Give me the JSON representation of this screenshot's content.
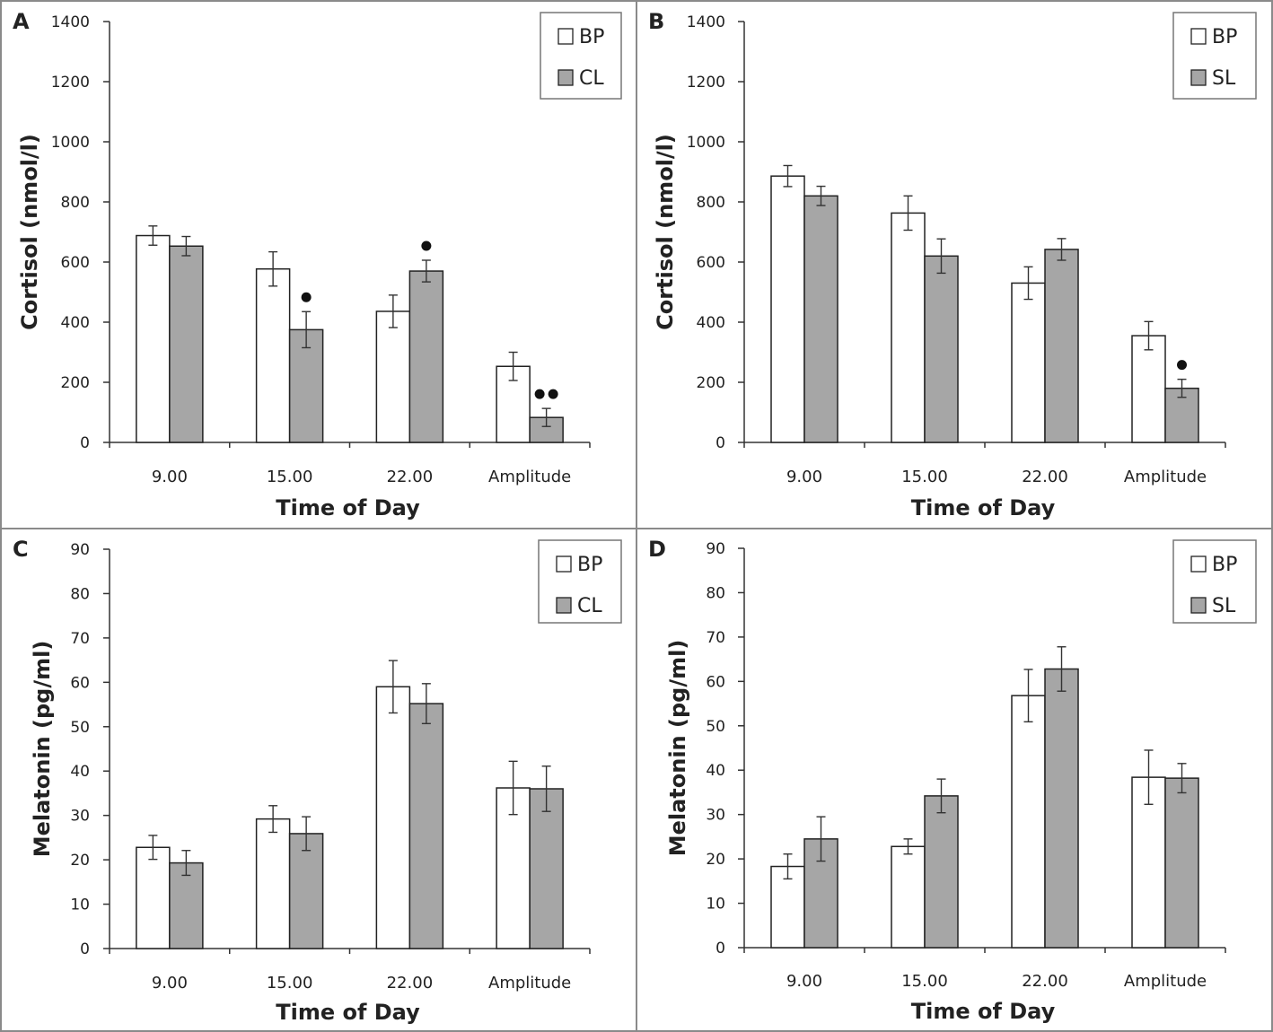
{
  "figure": {
    "panels": [
      {
        "id": "A",
        "letter": "A",
        "ylabel": "Cortisol (nmol/l)",
        "xlabel": "Time of Day",
        "ymax": 1400,
        "ystep": 200,
        "categories": [
          "9.00",
          "15.00",
          "22.00",
          "Amplitude"
        ],
        "series": [
          {
            "name": "BP",
            "color": "#ffffff",
            "values": [
              688,
              577,
              436,
              253
            ],
            "errors": [
              32,
              57,
              54,
              47
            ]
          },
          {
            "name": "CL",
            "color": "#a6a6a6",
            "values": [
              653,
              375,
              570,
              83
            ],
            "errors": [
              32,
              60,
              36,
              30
            ]
          }
        ],
        "markers": [
          {
            "series": 1,
            "category": 1,
            "count": 1
          },
          {
            "series": 1,
            "category": 2,
            "count": 1
          },
          {
            "series": 1,
            "category": 3,
            "count": 2
          }
        ]
      },
      {
        "id": "B",
        "letter": "B",
        "ylabel": "Cortisol (nmol/l)",
        "xlabel": "Time of Day",
        "ymax": 1400,
        "ystep": 200,
        "categories": [
          "9.00",
          "15.00",
          "22.00",
          "Amplitude"
        ],
        "series": [
          {
            "name": "BP",
            "color": "#ffffff",
            "values": [
              886,
              763,
              530,
              355
            ],
            "errors": [
              35,
              57,
              54,
              47
            ]
          },
          {
            "name": "SL",
            "color": "#a6a6a6",
            "values": [
              820,
              620,
              642,
              180
            ],
            "errors": [
              32,
              57,
              36,
              30
            ]
          }
        ],
        "markers": [
          {
            "series": 1,
            "category": 3,
            "count": 1
          }
        ]
      },
      {
        "id": "C",
        "letter": "C",
        "ylabel": "Melatonin (pg/ml)",
        "xlabel": "Time of Day",
        "ymax": 90,
        "ystep": 10,
        "categories": [
          "9.00",
          "15.00",
          "22.00",
          "Amplitude"
        ],
        "series": [
          {
            "name": "BP",
            "color": "#ffffff",
            "values": [
              22.8,
              29.2,
              59.0,
              36.2
            ],
            "errors": [
              2.7,
              3.0,
              5.9,
              6.0
            ]
          },
          {
            "name": "CL",
            "color": "#a6a6a6",
            "values": [
              19.3,
              25.9,
              55.2,
              36.0
            ],
            "errors": [
              2.8,
              3.8,
              4.5,
              5.1
            ]
          }
        ],
        "markers": []
      },
      {
        "id": "D",
        "letter": "D",
        "ylabel": "Melatonin (pg/ml)",
        "xlabel": "Time of Day",
        "ymax": 90,
        "ystep": 10,
        "categories": [
          "9.00",
          "15.00",
          "22.00",
          "Amplitude"
        ],
        "series": [
          {
            "name": "BP",
            "color": "#ffffff",
            "values": [
              18.3,
              22.8,
              56.8,
              38.4
            ],
            "errors": [
              2.8,
              1.7,
              5.9,
              6.1
            ]
          },
          {
            "name": "SL",
            "color": "#a6a6a6",
            "values": [
              24.5,
              34.2,
              62.8,
              38.2
            ],
            "errors": [
              5.0,
              3.8,
              5.0,
              3.3
            ]
          }
        ],
        "markers": []
      }
    ]
  },
  "chart_data": [
    {
      "type": "bar",
      "panel": "A",
      "title": "",
      "xlabel": "Time of Day",
      "ylabel": "Cortisol (nmol/l)",
      "ylim": [
        0,
        1400
      ],
      "categories": [
        "9.00",
        "15.00",
        "22.00",
        "Amplitude"
      ],
      "series": [
        {
          "name": "BP",
          "values": [
            688,
            577,
            436,
            253
          ],
          "errors": [
            32,
            57,
            54,
            47
          ]
        },
        {
          "name": "CL",
          "values": [
            653,
            375,
            570,
            83
          ],
          "errors": [
            32,
            60,
            36,
            30
          ]
        }
      ],
      "legend": [
        "BP",
        "CL"
      ],
      "legend_position": "top-right",
      "annotations": [
        "● over CL at 15.00",
        "● over CL at 22.00",
        "●● over CL at Amplitude"
      ]
    },
    {
      "type": "bar",
      "panel": "B",
      "title": "",
      "xlabel": "Time of Day",
      "ylabel": "Cortisol (nmol/l)",
      "ylim": [
        0,
        1400
      ],
      "categories": [
        "9.00",
        "15.00",
        "22.00",
        "Amplitude"
      ],
      "series": [
        {
          "name": "BP",
          "values": [
            886,
            763,
            530,
            355
          ],
          "errors": [
            35,
            57,
            54,
            47
          ]
        },
        {
          "name": "SL",
          "values": [
            820,
            620,
            642,
            180
          ],
          "errors": [
            32,
            57,
            36,
            30
          ]
        }
      ],
      "legend": [
        "BP",
        "SL"
      ],
      "legend_position": "top-right",
      "annotations": [
        "● over SL at Amplitude"
      ]
    },
    {
      "type": "bar",
      "panel": "C",
      "title": "",
      "xlabel": "Time of Day",
      "ylabel": "Melatonin (pg/ml)",
      "ylim": [
        0,
        90
      ],
      "categories": [
        "9.00",
        "15.00",
        "22.00",
        "Amplitude"
      ],
      "series": [
        {
          "name": "BP",
          "values": [
            22.8,
            29.2,
            59.0,
            36.2
          ],
          "errors": [
            2.7,
            3.0,
            5.9,
            6.0
          ]
        },
        {
          "name": "CL",
          "values": [
            19.3,
            25.9,
            55.2,
            36.0
          ],
          "errors": [
            2.8,
            3.8,
            4.5,
            5.1
          ]
        }
      ],
      "legend": [
        "BP",
        "CL"
      ],
      "legend_position": "top-right"
    },
    {
      "type": "bar",
      "panel": "D",
      "title": "",
      "xlabel": "Time of Day",
      "ylabel": "Melatonin (pg/ml)",
      "ylim": [
        0,
        90
      ],
      "categories": [
        "9.00",
        "15.00",
        "22.00",
        "Amplitude"
      ],
      "series": [
        {
          "name": "BP",
          "values": [
            18.3,
            22.8,
            56.8,
            38.4
          ],
          "errors": [
            2.8,
            1.7,
            5.9,
            6.1
          ]
        },
        {
          "name": "SL",
          "values": [
            24.5,
            34.2,
            62.8,
            38.2
          ],
          "errors": [
            5.0,
            3.8,
            5.0,
            3.3
          ]
        }
      ],
      "legend": [
        "BP",
        "SL"
      ],
      "legend_position": "top-right"
    }
  ]
}
